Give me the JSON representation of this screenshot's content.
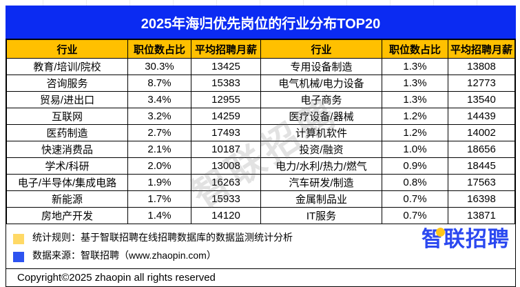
{
  "title": "2025年海归优先岗位的行业分布TOP20",
  "colors": {
    "banner_blue": "#0b2bf2",
    "header_yellow": "#ffc000",
    "note_yellow": "#ffd966",
    "note_blue": "#2d53f0",
    "logo_blue": "#2b48f0",
    "logo_yellow": "#ffc61a"
  },
  "table": {
    "headers": [
      "行业",
      "职位数占比",
      "平均招聘月薪"
    ],
    "left_rows": [
      [
        "教育/培训/院校",
        "30.3%",
        "13425"
      ],
      [
        "咨询服务",
        "8.7%",
        "15383"
      ],
      [
        "贸易/进出口",
        "3.4%",
        "12955"
      ],
      [
        "互联网",
        "3.2%",
        "14259"
      ],
      [
        "医药制造",
        "2.7%",
        "17493"
      ],
      [
        "快速消费品",
        "2.1%",
        "10187"
      ],
      [
        "学术/科研",
        "2.0%",
        "13008"
      ],
      [
        "电子/半导体/集成电路",
        "1.9%",
        "16263"
      ],
      [
        "新能源",
        "1.7%",
        "15933"
      ],
      [
        "房地产开发",
        "1.4%",
        "14120"
      ]
    ],
    "right_rows": [
      [
        "专用设备制造",
        "1.3%",
        "13808"
      ],
      [
        "电气机械/电力设备",
        "1.3%",
        "12773"
      ],
      [
        "电子商务",
        "1.3%",
        "13540"
      ],
      [
        "医疗设备/器械",
        "1.2%",
        "14439"
      ],
      [
        "计算机软件",
        "1.2%",
        "14002"
      ],
      [
        "投资/融资",
        "1.0%",
        "18656"
      ],
      [
        "电力/水利/热力/燃气",
        "0.9%",
        "18445"
      ],
      [
        "汽车研发/制造",
        "0.8%",
        "17563"
      ],
      [
        "金属制品业",
        "0.7%",
        "16398"
      ],
      [
        "IT服务",
        "0.7%",
        "13871"
      ]
    ]
  },
  "footer": {
    "note1": "统计规则：基于智联招聘在线招聘数据库的数据监测统计分析",
    "note2": "数据来源：智联招聘（www.zhaopin.com）",
    "copyright": "Copyright©2025 zhaopin all rights reserved"
  },
  "logo": {
    "char1": "智",
    "rest": "联招聘"
  },
  "watermark": "智联招聘",
  "chart_data": {
    "type": "table",
    "title": "2025年海归优先岗位的行业分布TOP20",
    "columns": [
      "行业",
      "职位数占比",
      "平均招聘月薪"
    ],
    "rows": [
      [
        "教育/培训/院校",
        "30.3%",
        13425
      ],
      [
        "咨询服务",
        "8.7%",
        15383
      ],
      [
        "贸易/进出口",
        "3.4%",
        12955
      ],
      [
        "互联网",
        "3.2%",
        14259
      ],
      [
        "医药制造",
        "2.7%",
        17493
      ],
      [
        "快速消费品",
        "2.1%",
        10187
      ],
      [
        "学术/科研",
        "2.0%",
        13008
      ],
      [
        "电子/半导体/集成电路",
        "1.9%",
        16263
      ],
      [
        "新能源",
        "1.7%",
        15933
      ],
      [
        "房地产开发",
        "1.4%",
        14120
      ],
      [
        "专用设备制造",
        "1.3%",
        13808
      ],
      [
        "电气机械/电力设备",
        "1.3%",
        12773
      ],
      [
        "电子商务",
        "1.3%",
        13540
      ],
      [
        "医疗设备/器械",
        "1.2%",
        14439
      ],
      [
        "计算机软件",
        "1.2%",
        14002
      ],
      [
        "投资/融资",
        "1.0%",
        18656
      ],
      [
        "电力/水利/热力/燃气",
        "0.9%",
        18445
      ],
      [
        "汽车研发/制造",
        "0.8%",
        17563
      ],
      [
        "金属制品业",
        "0.7%",
        16398
      ],
      [
        "IT服务",
        "0.7%",
        13871
      ]
    ],
    "source": "智联招聘（www.zhaopin.com）"
  }
}
